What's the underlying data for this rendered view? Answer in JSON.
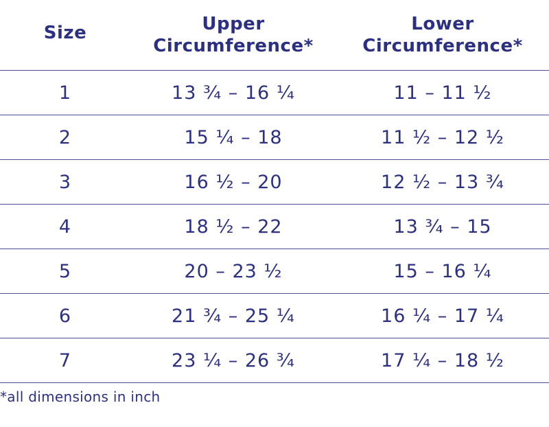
{
  "table": {
    "headers": {
      "size": "Size",
      "upper_line1": "Upper",
      "upper_line2": "Circumference*",
      "lower_line1": "Lower",
      "lower_line2": "Circumference*"
    },
    "rows": [
      {
        "size": "1",
        "upper": "13 ¾ – 16 ¼",
        "lower": "11 – 11 ½"
      },
      {
        "size": "2",
        "upper": "15 ¼ – 18",
        "lower": "11 ½ – 12 ½"
      },
      {
        "size": "3",
        "upper": "16 ½ – 20",
        "lower": "12 ½ – 13 ¾"
      },
      {
        "size": "4",
        "upper": "18 ½ – 22",
        "lower": "13 ¾ – 15"
      },
      {
        "size": "5",
        "upper": "20 – 23 ½",
        "lower": "15 – 16 ¼"
      },
      {
        "size": "6",
        "upper": "21 ¾ – 25 ¼",
        "lower": "16 ¼ – 17 ¼"
      },
      {
        "size": "7",
        "upper": "23 ¼ – 26 ¾",
        "lower": "17 ¼ – 18 ½"
      }
    ]
  },
  "footnote": "*all dimensions in inch"
}
